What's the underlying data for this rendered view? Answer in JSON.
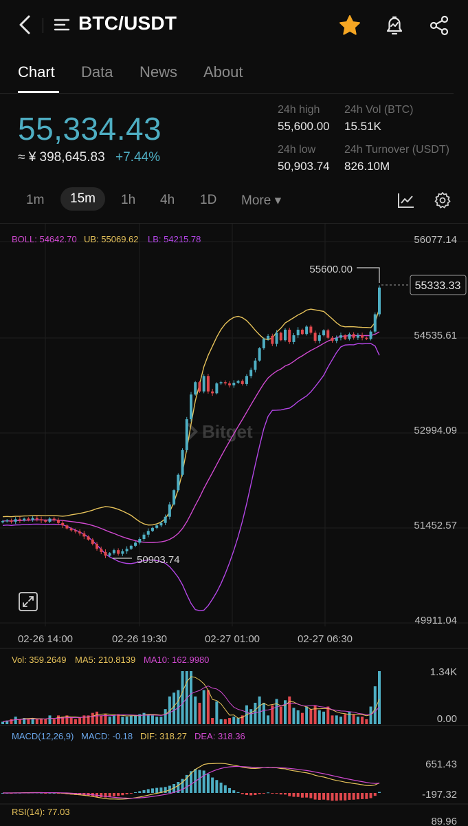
{
  "header": {
    "pair": "BTC/USDT",
    "icons": [
      "back-chevron-icon",
      "menu-lines-icon",
      "star-icon",
      "price-alert-bell-icon",
      "share-icon"
    ],
    "star_color": "#F5A623"
  },
  "tabs": [
    {
      "label": "Chart",
      "active": true
    },
    {
      "label": "Data",
      "active": false
    },
    {
      "label": "News",
      "active": false
    },
    {
      "label": "About",
      "active": false
    }
  ],
  "ticker": {
    "price": "55,334.43",
    "cny": "≈ ¥ 398,645.83",
    "change": "+7.44%",
    "high_label": "24h high",
    "high": "55,600.00",
    "vol_label": "24h Vol (BTC)",
    "vol": "15.51K",
    "low_label": "24h low",
    "low": "50,903.74",
    "turnover_label": "24h Turnover (USDT)",
    "turnover": "826.10M",
    "up_color": "#4EAEC3",
    "down_color": "#E0484D"
  },
  "intervals": [
    {
      "label": "1m",
      "active": false
    },
    {
      "label": "15m",
      "active": true
    },
    {
      "label": "1h",
      "active": false
    },
    {
      "label": "4h",
      "active": false
    },
    {
      "label": "1D",
      "active": false
    },
    {
      "label": "More ▾",
      "active": false
    }
  ],
  "chart_data": {
    "type": "candlestick",
    "boll": {
      "boll": "BOLL: 54642.70",
      "ub": "UB: 55069.62",
      "lb": "LB: 54215.78",
      "colors": {
        "boll": "#D049D0",
        "ub": "#E6C25A",
        "lb": "#B346E6"
      }
    },
    "y_ticks": [
      "56077.14",
      "54535.61",
      "52994.09",
      "51452.57",
      "49911.04"
    ],
    "y_tick_values": [
      56077.14,
      54535.61,
      52994.09,
      51452.57,
      49911.04
    ],
    "ylim": [
      49911.04,
      56077.14
    ],
    "x_ticks": [
      "02-26 14:00",
      "02-26 19:30",
      "02-27 01:00",
      "02-27 06:30"
    ],
    "current_price_tag": "55333.33",
    "high_marker": "55600.00",
    "low_marker": "50903.74",
    "watermark": "Bitget",
    "closes": [
      51550,
      51560,
      51540,
      51580,
      51560,
      51590,
      51570,
      51600,
      51580,
      51560,
      51540,
      51590,
      51570,
      51520,
      51480,
      51430,
      51400,
      51380,
      51350,
      51300,
      51250,
      51180,
      51100,
      51050,
      50990,
      51030,
      51080,
      51020,
      51060,
      51100,
      51150,
      51200,
      51260,
      51330,
      51390,
      51440,
      51480,
      51520,
      51620,
      51820,
      52050,
      52300,
      52700,
      53200,
      53600,
      53800,
      53650,
      53900,
      53650,
      53620,
      53780,
      53800,
      53780,
      53750,
      53790,
      53820,
      53770,
      53900,
      54000,
      54150,
      54350,
      54500,
      54550,
      54420,
      54600,
      54480,
      54650,
      54450,
      54560,
      54650,
      54580,
      54700,
      54600,
      54470,
      54560,
      54640,
      54520,
      54470,
      54520,
      54560,
      54500,
      54580,
      54520,
      54560,
      54520,
      54500,
      54620,
      54900,
      55333
    ],
    "volume": {
      "vol": "Vol: 359.2649",
      "ma5": "MA5: 210.8139",
      "ma10": "MA10: 162.9980",
      "y_ticks": [
        "1.34K",
        "0.00"
      ],
      "ylim": [
        0,
        1340
      ]
    },
    "macd": {
      "label": "MACD(12,26,9)",
      "macd": "MACD: -0.18",
      "dif": "DIF: 318.27",
      "dea": "DEA: 318.36",
      "y_ticks": [
        "651.43",
        "-197.32"
      ],
      "ylim": [
        -197.32,
        651.43
      ]
    },
    "rsi": {
      "label": "RSI(14): 77.03",
      "y_tick": "89.96"
    }
  }
}
